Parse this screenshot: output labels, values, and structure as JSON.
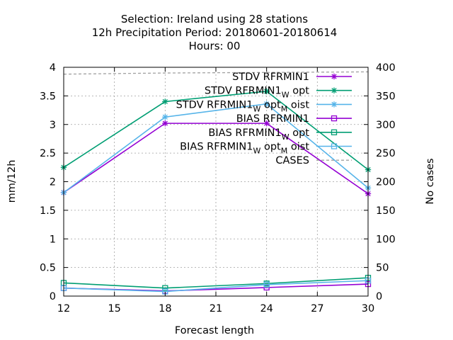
{
  "title_lines": [
    "Selection: Ireland using    28 stations",
    "12h Precipitation    Period: 20180601-20180614",
    "Hours:  00"
  ],
  "chart_data": {
    "type": "line",
    "xlabel": "Forecast length",
    "ylabel": "mm/12h",
    "y2label": "No cases",
    "xlim": [
      12,
      30
    ],
    "ylim": [
      0,
      4
    ],
    "y2lim": [
      0,
      400
    ],
    "xticks": [
      "12",
      "15",
      "18",
      "21",
      "24",
      "27",
      "30"
    ],
    "yticks": [
      "0",
      "0.5",
      "1",
      "1.5",
      "2",
      "2.5",
      "3",
      "3.5",
      "4"
    ],
    "y2ticks": [
      "0",
      "50",
      "100",
      "150",
      "200",
      "250",
      "300",
      "350",
      "400"
    ],
    "grid": true,
    "legend_position": "top-right",
    "x": [
      12,
      18,
      24,
      30
    ],
    "series": [
      {
        "name": "STDV RFRMIN1",
        "legend_main": "STDV RFRMIN1",
        "legend_sub1": "",
        "legend_mid": "",
        "legend_sub2": "",
        "legend_tail": "",
        "color": "#9400d3",
        "marker": "star",
        "dash": "",
        "axis": "y",
        "values": [
          1.81,
          3.02,
          3.02,
          1.79
        ]
      },
      {
        "name": "STDV RFRMIN1_W opt",
        "legend_main": "STDV RFRMIN1",
        "legend_sub1": "W",
        "legend_mid": " opt",
        "legend_sub2": "",
        "legend_tail": "",
        "color": "#009e73",
        "marker": "star",
        "dash": "",
        "axis": "y",
        "values": [
          2.25,
          3.4,
          3.58,
          2.21
        ]
      },
      {
        "name": "STDV RFRMIN1_W opt_M oist",
        "legend_main": "STDV RFRMIN1",
        "legend_sub1": "W",
        "legend_mid": " opt",
        "legend_sub2": "M",
        "legend_tail": " oist",
        "color": "#56b4e9",
        "marker": "star",
        "dash": "",
        "axis": "y",
        "values": [
          1.81,
          3.13,
          3.36,
          1.89
        ]
      },
      {
        "name": "BIAS RFRMIN1",
        "legend_main": "BIAS RFRMIN1",
        "legend_sub1": "",
        "legend_mid": "",
        "legend_sub2": "",
        "legend_tail": "",
        "color": "#9400d3",
        "marker": "square",
        "dash": "",
        "axis": "y",
        "values": [
          0.14,
          0.09,
          0.15,
          0.21
        ]
      },
      {
        "name": "BIAS RFRMIN1_W opt",
        "legend_main": "BIAS RFRMIN1",
        "legend_sub1": "W",
        "legend_mid": " opt",
        "legend_sub2": "",
        "legend_tail": "",
        "color": "#009e73",
        "marker": "square",
        "dash": "",
        "axis": "y",
        "values": [
          0.23,
          0.14,
          0.22,
          0.32
        ]
      },
      {
        "name": "BIAS RFRMIN1_W opt_M oist",
        "legend_main": "BIAS RFRMIN1",
        "legend_sub1": "W",
        "legend_mid": " opt",
        "legend_sub2": "M",
        "legend_tail": " oist",
        "color": "#56b4e9",
        "marker": "square",
        "dash": "",
        "axis": "y",
        "values": [
          0.14,
          0.08,
          0.2,
          0.27
        ]
      },
      {
        "name": "CASES",
        "legend_main": "CASES",
        "legend_sub1": "",
        "legend_mid": "",
        "legend_sub2": "",
        "legend_tail": "",
        "color": "#a0a0a0",
        "marker": "none",
        "dash": "4,3",
        "axis": "y2",
        "values": [
          388,
          390,
          391,
          392
        ]
      }
    ]
  }
}
